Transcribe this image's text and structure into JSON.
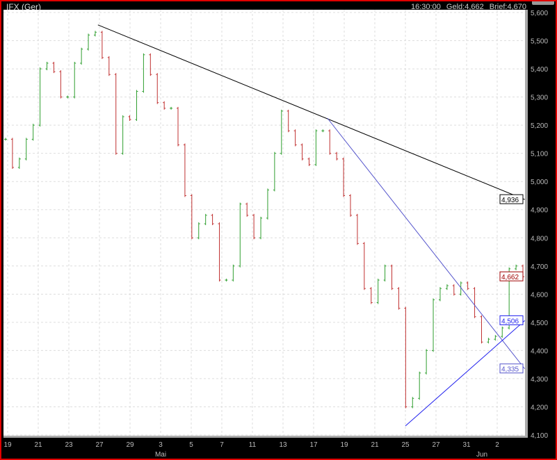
{
  "header": {
    "title": "IFX (Ger)",
    "time": "16:30:00",
    "bid": "Geld:4,662",
    "ask": "Brief:4,670"
  },
  "colors": {
    "up": "#2e9e2e",
    "down": "#c03030",
    "trend_resistance": "#000000",
    "trend_down": "#5555cc",
    "trend_support": "#2222ee",
    "last_label": "#a00000",
    "frame": "#e00000"
  },
  "chart_data": {
    "type": "ohlc",
    "ylim": [
      4100,
      5600
    ],
    "yticks": [
      "5,600",
      "5,500",
      "5,400",
      "5,300",
      "5,200",
      "5,100",
      "5,000",
      "4,900",
      "4,800",
      "4,700",
      "4,600",
      "4,500",
      "4,400",
      "4,300",
      "4,200",
      "4,100"
    ],
    "ytick_values": [
      5600,
      5500,
      5400,
      5300,
      5200,
      5100,
      5000,
      4900,
      4800,
      4700,
      4600,
      4500,
      4400,
      4300,
      4200,
      4100
    ],
    "xticks": [
      {
        "label": "19",
        "day": 0
      },
      {
        "label": "21",
        "day": 2
      },
      {
        "label": "23",
        "day": 4
      },
      {
        "label": "27",
        "day": 6
      },
      {
        "label": "29",
        "day": 8
      },
      {
        "label": "3",
        "day": 10
      },
      {
        "label": "5",
        "day": 12
      },
      {
        "label": "7",
        "day": 14
      },
      {
        "label": "11",
        "day": 16
      },
      {
        "label": "13",
        "day": 18
      },
      {
        "label": "17",
        "day": 20
      },
      {
        "label": "19",
        "day": 22
      },
      {
        "label": "21",
        "day": 24
      },
      {
        "label": "25",
        "day": 26
      },
      {
        "label": "27",
        "day": 28
      },
      {
        "label": "31",
        "day": 30
      },
      {
        "label": "2",
        "day": 32
      }
    ],
    "month_labels": [
      {
        "label": "Mai",
        "day": 10
      },
      {
        "label": "Jun",
        "day": 31
      }
    ],
    "grid": true,
    "close": [
      5150,
      5050,
      5080,
      5150,
      5200,
      5400,
      5420,
      5390,
      5300,
      5300,
      5420,
      5470,
      5520,
      5530,
      5440,
      5380,
      5100,
      5230,
      5220,
      5320,
      5450,
      5380,
      5280,
      5260,
      5260,
      5130,
      4950,
      4800,
      4850,
      4880,
      4850,
      4650,
      4650,
      4700,
      4920,
      4880,
      4800,
      4870,
      4970,
      5100,
      5250,
      5180,
      5130,
      5080,
      5060,
      5180,
      5180,
      5100,
      5080,
      4950,
      4880,
      4780,
      4620,
      4570,
      4650,
      4700,
      4620,
      4550,
      4200,
      4230,
      4320,
      4400,
      4580,
      4620,
      4630,
      4600,
      4640,
      4620,
      4520,
      4430,
      4440,
      4450,
      4480,
      4690,
      4700,
      4662
    ],
    "trendlines": [
      {
        "from": [
          5.9,
          5556
        ],
        "to": [
          33.8,
          4936
        ],
        "label": "4,936",
        "color_key": "trend_resistance"
      },
      {
        "from": [
          20.9,
          5225
        ],
        "to": [
          33.8,
          4335
        ],
        "label": "4,335",
        "color_key": "trend_down"
      },
      {
        "from": [
          26,
          4132
        ],
        "to": [
          33.8,
          4506
        ],
        "label": "4,506",
        "color_key": "trend_support"
      }
    ],
    "last_price_label": "4,662",
    "last_price": 4662
  }
}
